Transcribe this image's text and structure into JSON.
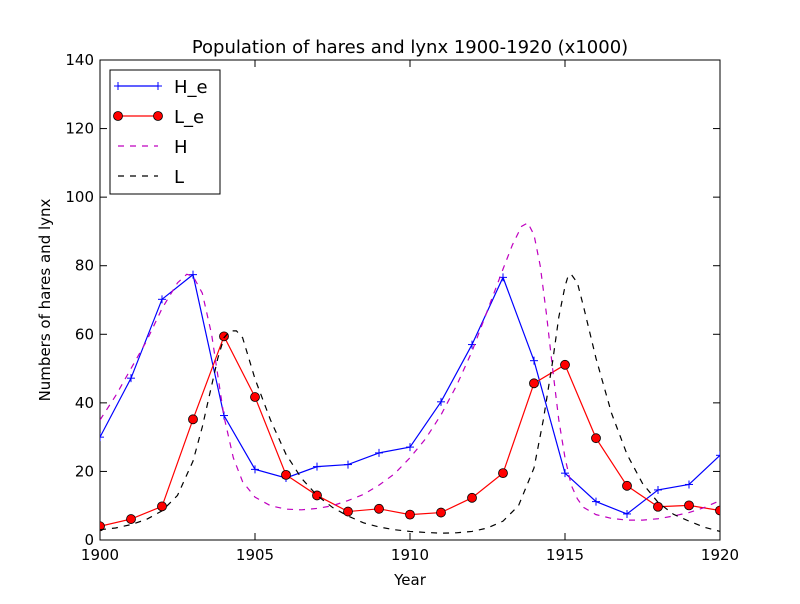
{
  "chart_data": {
    "type": "line",
    "title": "Population of hares and lynx 1900-1920 (x1000)",
    "xlabel": "Year",
    "ylabel": "Numbers of hares and lynx",
    "xlim": [
      1900,
      1920
    ],
    "ylim": [
      0,
      140
    ],
    "xticks": [
      1900,
      1905,
      1910,
      1915,
      1920
    ],
    "yticks": [
      0,
      20,
      40,
      60,
      80,
      100,
      120,
      140
    ],
    "legend_position": "top-left",
    "grid": false,
    "series": [
      {
        "name": "H_e",
        "style": "solid",
        "marker": "plus",
        "color": "#0000ff",
        "x": [
          1900,
          1901,
          1902,
          1903,
          1904,
          1905,
          1906,
          1907,
          1908,
          1909,
          1910,
          1911,
          1912,
          1913,
          1914,
          1915,
          1916,
          1917,
          1918,
          1919,
          1920
        ],
        "y": [
          30,
          47.2,
          70.2,
          77.4,
          36.3,
          20.6,
          18.1,
          21.4,
          22,
          25.4,
          27.1,
          40.3,
          57,
          76.6,
          52.3,
          19.5,
          11.2,
          7.6,
          14.6,
          16.2,
          24.7
        ]
      },
      {
        "name": "L_e",
        "style": "solid",
        "marker": "circle",
        "color": "#ff0000",
        "x": [
          1900,
          1901,
          1902,
          1903,
          1904,
          1905,
          1906,
          1907,
          1908,
          1909,
          1910,
          1911,
          1912,
          1913,
          1914,
          1915,
          1916,
          1917,
          1918,
          1919,
          1920
        ],
        "y": [
          4,
          6.1,
          9.8,
          35.2,
          59.4,
          41.7,
          19,
          13,
          8.3,
          9.1,
          7.4,
          8,
          12.3,
          19.5,
          45.7,
          51.1,
          29.7,
          15.8,
          9.7,
          10.1,
          8.6
        ]
      },
      {
        "name": "H",
        "style": "dashed",
        "marker": "none",
        "color": "#bf00bf",
        "x": [
          1900,
          1900.5,
          1901,
          1901.5,
          1902,
          1902.5,
          1902.8,
          1903,
          1903.3,
          1903.6,
          1903.8,
          1904,
          1904.3,
          1904.6,
          1905,
          1905.5,
          1906,
          1906.5,
          1907,
          1907.5,
          1908,
          1908.5,
          1909,
          1909.5,
          1910,
          1910.5,
          1911,
          1911.5,
          1912,
          1912.5,
          1913,
          1913.3,
          1913.6,
          1913.8,
          1914,
          1914.2,
          1914.4,
          1914.6,
          1914.8,
          1915,
          1915.2,
          1915.4,
          1915.6,
          1916,
          1916.5,
          1917,
          1917.5,
          1918,
          1918.5,
          1919,
          1919.5,
          1920
        ],
        "y": [
          35,
          42,
          50,
          58,
          67.5,
          75,
          77.5,
          77,
          72,
          60,
          48,
          36,
          24,
          17,
          12.5,
          10,
          9,
          8.8,
          9.2,
          10,
          11.5,
          13.3,
          16,
          19.3,
          24,
          29.5,
          36.5,
          45,
          55,
          67,
          79,
          86,
          91.5,
          92.5,
          89,
          80,
          66,
          50,
          35,
          24,
          16,
          12,
          9.5,
          7.4,
          6.3,
          5.8,
          5.8,
          6.2,
          7,
          8,
          9.5,
          11.5
        ]
      },
      {
        "name": "L",
        "style": "dashed",
        "marker": "none",
        "color": "#000000",
        "x": [
          1900,
          1900.5,
          1901,
          1901.5,
          1902,
          1902.5,
          1903,
          1903.3,
          1903.6,
          1903.8,
          1904,
          1904.2,
          1904.4,
          1904.6,
          1904.8,
          1905,
          1905.5,
          1906,
          1906.5,
          1907,
          1907.5,
          1908,
          1908.5,
          1909,
          1909.5,
          1910,
          1910.5,
          1911,
          1911.5,
          1912,
          1912.5,
          1913,
          1913.5,
          1914,
          1914.3,
          1914.6,
          1914.8,
          1915,
          1915.1,
          1915.2,
          1915.4,
          1915.6,
          1916,
          1916.5,
          1917,
          1917.5,
          1918,
          1918.5,
          1919,
          1919.5,
          1920
        ],
        "y": [
          3,
          3.5,
          4.5,
          6,
          8.5,
          13,
          23,
          33,
          45,
          53,
          59,
          61,
          61,
          59,
          53,
          47,
          35,
          25,
          18,
          13,
          9.5,
          7,
          5,
          3.8,
          3,
          2.5,
          2.2,
          2,
          2.1,
          2.5,
          3.5,
          5.5,
          10,
          21,
          35,
          52,
          65,
          74,
          77,
          77.5,
          75,
          68,
          53,
          37,
          25,
          16.5,
          11,
          7.5,
          5.5,
          3.7,
          2.5
        ]
      }
    ]
  }
}
